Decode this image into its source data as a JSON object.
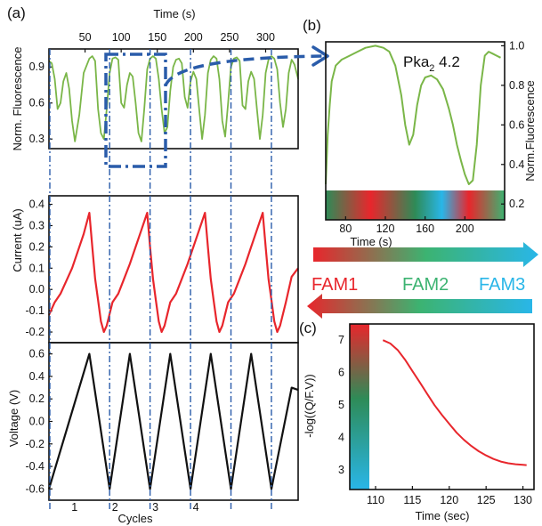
{
  "panel_labels": {
    "a": "(a)",
    "b": "(b)",
    "c": "(c)"
  },
  "colors": {
    "fluorescence": "#7ab648",
    "current": "#e8262c",
    "voltage": "#111111",
    "dashed": "#2a5caa",
    "fam1": "#e8262c",
    "fam2": "#3cb371",
    "fam3": "#29b6e8"
  },
  "legend": {
    "fam1": "FAM1",
    "fam2": "FAM2",
    "fam3": "FAM3"
  },
  "b_annotation": {
    "prefix": "Pka",
    "sub": "2",
    "suffix": " 4.2"
  },
  "chart_data": [
    {
      "id": "a-fluorescence",
      "type": "line",
      "top_axis_title": "Time (s)",
      "top_ticks": [
        "50",
        "100",
        "150",
        "200",
        "250",
        "300"
      ],
      "ylabel": "Norm. Fluorescence",
      "yticks": [
        "0.3",
        "0.6",
        "0.9"
      ],
      "x_range_s": [
        0,
        345
      ],
      "ylim": [
        0.22,
        1.05
      ],
      "series": [
        {
          "x": [
            0,
            4,
            8,
            12,
            16,
            20,
            24,
            28,
            32,
            36,
            42,
            48,
            56,
            60,
            64,
            68,
            72,
            76,
            80,
            84,
            88,
            92,
            96,
            100,
            104,
            108,
            112,
            116,
            120,
            124,
            128,
            132,
            136,
            140,
            144,
            148,
            152,
            156,
            160,
            164,
            168,
            172,
            176,
            180,
            184,
            188,
            192,
            196,
            200,
            204,
            208,
            212,
            216,
            220,
            224,
            228,
            232,
            236,
            240,
            244,
            248,
            252,
            256,
            260,
            264,
            268,
            272,
            276,
            280,
            284,
            288,
            292,
            296,
            300,
            304,
            308,
            312,
            316,
            320,
            324,
            328,
            332,
            336,
            340,
            345
          ],
          "y": [
            0.95,
            0.93,
            0.8,
            0.55,
            0.6,
            0.78,
            0.85,
            0.72,
            0.45,
            0.28,
            0.5,
            0.85,
            0.97,
            0.99,
            0.95,
            0.55,
            0.35,
            0.3,
            0.55,
            0.85,
            0.97,
            0.98,
            0.96,
            0.6,
            0.56,
            0.75,
            0.85,
            0.82,
            0.6,
            0.35,
            0.28,
            0.55,
            0.88,
            0.97,
            0.99,
            0.97,
            0.8,
            0.55,
            0.35,
            0.4,
            0.7,
            0.9,
            0.96,
            0.97,
            0.93,
            0.65,
            0.56,
            0.78,
            0.86,
            0.8,
            0.55,
            0.3,
            0.5,
            0.85,
            0.96,
            0.99,
            0.97,
            0.8,
            0.45,
            0.32,
            0.6,
            0.9,
            0.97,
            0.98,
            0.95,
            0.58,
            0.55,
            0.78,
            0.86,
            0.8,
            0.55,
            0.3,
            0.5,
            0.85,
            0.96,
            0.99,
            0.97,
            0.88,
            0.6,
            0.4,
            0.55,
            0.85,
            0.96,
            0.92,
            0.8
          ]
        }
      ]
    },
    {
      "id": "a-current",
      "type": "line",
      "ylabel": "Current (uA)",
      "yticks": [
        "-0.2",
        "-0.1",
        "0.0",
        "0.1",
        "0.2",
        "0.3",
        "0.4"
      ],
      "ylim": [
        -0.25,
        0.44
      ],
      "series": [
        {
          "x": [
            0,
            8,
            16,
            24,
            32,
            40,
            48,
            56,
            60,
            64,
            68,
            72,
            76,
            80,
            88,
            96,
            104,
            112,
            120,
            128,
            136,
            140,
            144,
            148,
            152,
            156,
            160,
            168,
            176,
            184,
            192,
            200,
            208,
            216,
            220,
            224,
            228,
            232,
            236,
            240,
            248,
            256,
            264,
            272,
            280,
            288,
            296,
            300,
            304,
            308,
            312,
            316,
            320,
            328,
            336,
            345
          ],
          "y": [
            -0.12,
            -0.06,
            -0.02,
            0.04,
            0.1,
            0.18,
            0.26,
            0.36,
            0.2,
            0.05,
            -0.05,
            -0.15,
            -0.2,
            -0.17,
            -0.06,
            -0.02,
            0.05,
            0.12,
            0.2,
            0.28,
            0.36,
            0.2,
            0.05,
            -0.05,
            -0.15,
            -0.2,
            -0.17,
            -0.06,
            -0.02,
            0.05,
            0.12,
            0.2,
            0.28,
            0.36,
            0.2,
            0.05,
            -0.05,
            -0.15,
            -0.2,
            -0.17,
            -0.06,
            -0.02,
            0.05,
            0.12,
            0.2,
            0.28,
            0.36,
            0.2,
            0.05,
            -0.05,
            -0.15,
            -0.2,
            -0.17,
            -0.06,
            0.06,
            0.1
          ]
        }
      ]
    },
    {
      "id": "a-voltage",
      "type": "line",
      "ylabel": "Voltage (V)",
      "yticks": [
        "-0.6",
        "-0.4",
        "-0.2",
        "0.0",
        "0.2",
        "0.4",
        "0.6"
      ],
      "ylim": [
        -0.7,
        0.7
      ],
      "xlabel": "Cycles",
      "xticks": [
        "1",
        "2",
        "3",
        "4"
      ],
      "series": [
        {
          "x": [
            0,
            28,
            56,
            84,
            112,
            140,
            168,
            196,
            224,
            252,
            280,
            308,
            336,
            345
          ],
          "y": [
            -0.6,
            0.0,
            0.6,
            -0.6,
            0.6,
            -0.6,
            0.6,
            -0.6,
            0.6,
            -0.6,
            0.6,
            -0.6,
            0.3,
            0.28
          ]
        }
      ]
    },
    {
      "id": "b-zoom",
      "type": "line",
      "xlabel": "Time (s)",
      "xticks": [
        "80",
        "120",
        "160",
        "200"
      ],
      "ylabel": "Norm.Fluorescence",
      "yticks": [
        "0.2",
        "0.4",
        "0.6",
        "0.8",
        "1.0"
      ],
      "xlim": [
        60,
        240
      ],
      "ylim": [
        0.12,
        1.02
      ],
      "series": [
        {
          "x": [
            60,
            62,
            64,
            66,
            70,
            76,
            84,
            92,
            100,
            110,
            118,
            124,
            130,
            136,
            140,
            144,
            148,
            152,
            156,
            160,
            166,
            172,
            178,
            184,
            188,
            192,
            196,
            200,
            204,
            208,
            212,
            216,
            220,
            224,
            228,
            232,
            236
          ],
          "y": [
            0.3,
            0.55,
            0.7,
            0.82,
            0.9,
            0.93,
            0.95,
            0.97,
            0.99,
            1.0,
            0.99,
            0.97,
            0.9,
            0.75,
            0.6,
            0.5,
            0.55,
            0.7,
            0.8,
            0.84,
            0.85,
            0.83,
            0.78,
            0.68,
            0.6,
            0.5,
            0.42,
            0.35,
            0.3,
            0.32,
            0.5,
            0.8,
            0.95,
            0.97,
            0.96,
            0.95,
            0.94
          ]
        }
      ]
    },
    {
      "id": "c-decay",
      "type": "line",
      "xlabel": "Time (sec)",
      "xticks": [
        "110",
        "115",
        "120",
        "125",
        "130"
      ],
      "ylabel": "-log((Q/F.V))",
      "yticks": [
        "3",
        "4",
        "5",
        "6",
        "7"
      ],
      "xlim": [
        106.5,
        131.5
      ],
      "ylim": [
        2.4,
        7.5
      ],
      "series": [
        {
          "x": [
            111,
            112,
            113,
            114,
            115,
            116,
            117,
            118,
            119,
            120,
            121,
            122,
            123,
            124,
            125,
            126,
            127,
            128,
            129,
            130,
            130.5
          ],
          "y": [
            7.0,
            6.9,
            6.7,
            6.4,
            6.05,
            5.7,
            5.35,
            5.0,
            4.7,
            4.42,
            4.15,
            3.93,
            3.74,
            3.58,
            3.45,
            3.34,
            3.26,
            3.21,
            3.18,
            3.16,
            3.15
          ]
        }
      ]
    }
  ]
}
